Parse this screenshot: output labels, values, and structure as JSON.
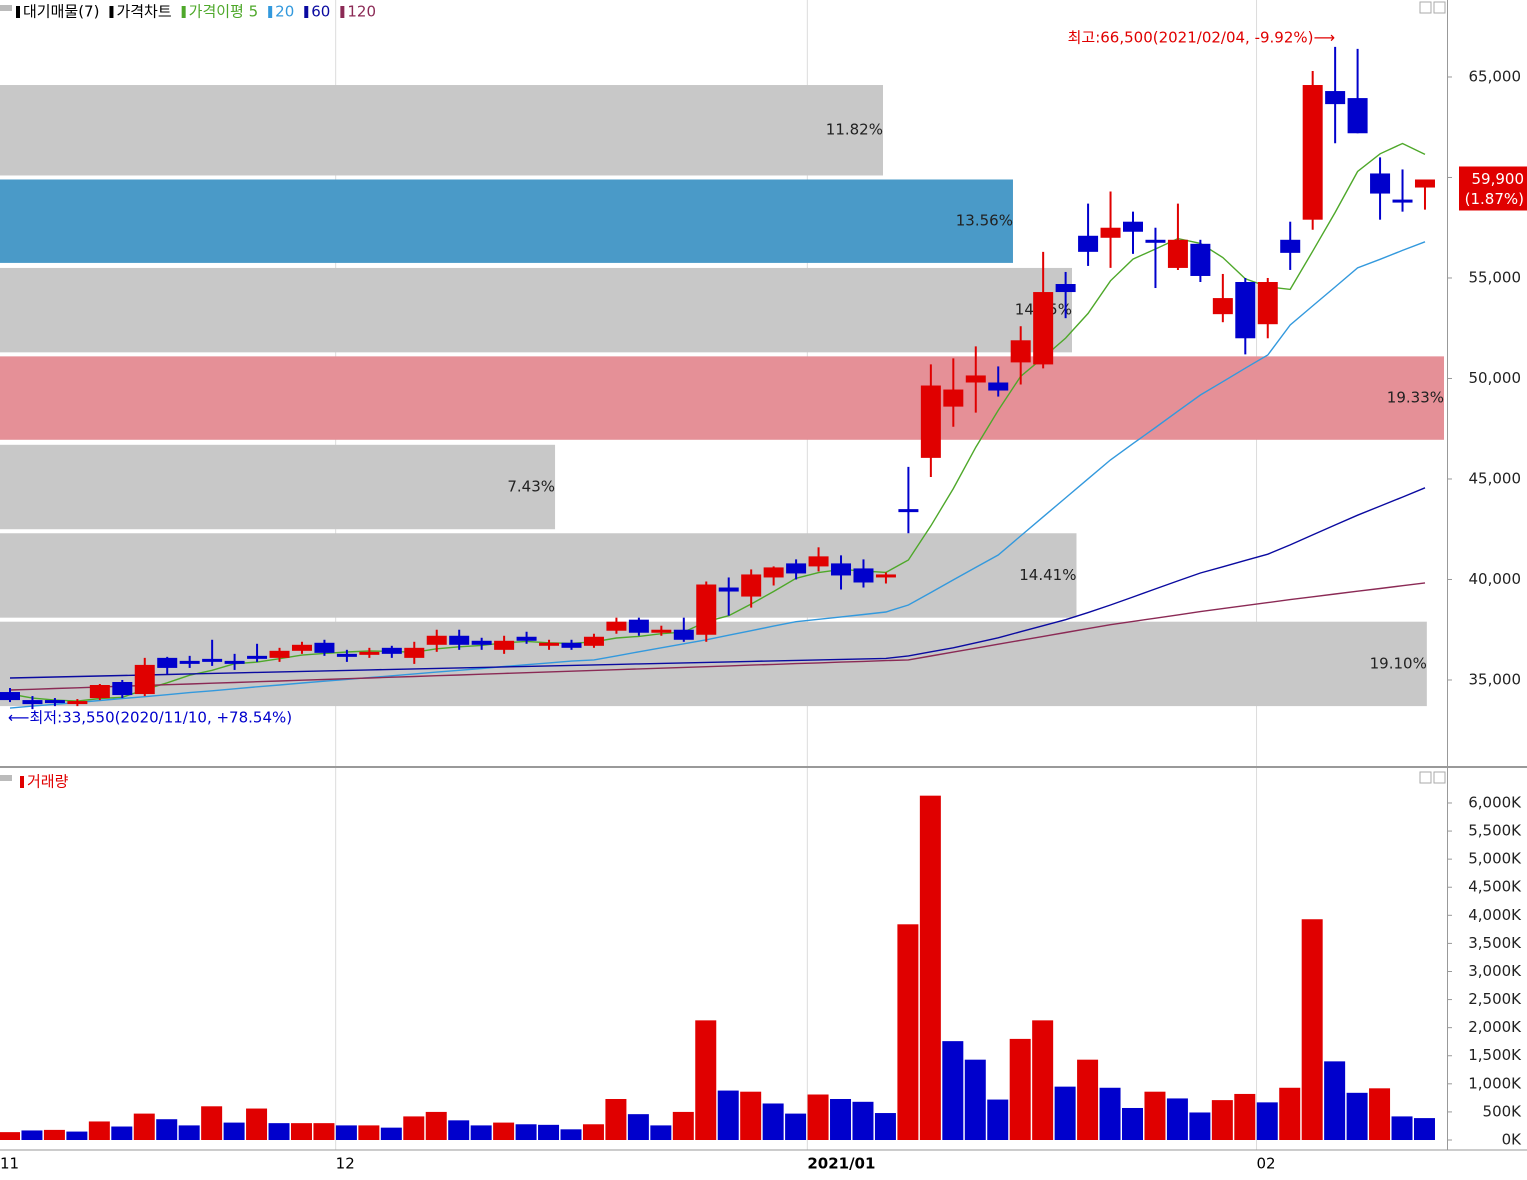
{
  "chart_data": [
    {
      "type": "candlestick",
      "candle_name": "가격차트",
      "up_color": "#e00000",
      "down_color": "#0000cc",
      "ylim": [
        30770,
        68830
      ],
      "yticks": [
        {
          "value": 35000,
          "label": "35,000"
        },
        {
          "value": 40000,
          "label": "40,000"
        },
        {
          "value": 45000,
          "label": "45,000"
        },
        {
          "value": 50000,
          "label": "50,000"
        },
        {
          "value": 55000,
          "label": "55,000"
        },
        {
          "value": 60000,
          "label": "60,000"
        },
        {
          "value": 65000,
          "label": "65,000"
        }
      ],
      "open": [
        34400,
        34000,
        34000,
        33850,
        34100,
        34900,
        34300,
        36100,
        35950,
        36050,
        35950,
        36200,
        36100,
        36450,
        36850,
        36300,
        36300,
        36600,
        36100,
        36750,
        37200,
        36950,
        36500,
        37150,
        36800,
        36850,
        36700,
        37450,
        38000,
        37400,
        37500,
        37250,
        39600,
        39150,
        40100,
        40800,
        40650,
        40800,
        40550,
        40150,
        43500,
        46050,
        48600,
        49800,
        49800,
        50800,
        50700,
        54700,
        57100,
        57000,
        57800,
        56900,
        55500,
        56700,
        53200,
        54800,
        52700,
        56900,
        57900,
        64300,
        63950,
        60200,
        58900,
        59500
      ],
      "high": [
        34600,
        34200,
        34100,
        34050,
        34800,
        35000,
        36100,
        36150,
        36200,
        37000,
        36300,
        36800,
        36600,
        36900,
        37000,
        36500,
        36600,
        36700,
        36900,
        37500,
        37500,
        37100,
        37200,
        37400,
        37000,
        37000,
        37300,
        38100,
        38100,
        37700,
        38100,
        39900,
        40100,
        40500,
        40650,
        41000,
        41600,
        41200,
        41000,
        40350,
        45600,
        50700,
        51000,
        51600,
        50600,
        52600,
        56300,
        55300,
        58700,
        59300,
        58300,
        57500,
        58700,
        56900,
        55200,
        55000,
        55000,
        57800,
        65300,
        66500,
        66400,
        61000,
        60400,
        59900
      ],
      "low": [
        33900,
        33550,
        33700,
        33700,
        34000,
        34100,
        34200,
        35300,
        35600,
        35700,
        35500,
        35900,
        35900,
        36300,
        36200,
        35900,
        36100,
        36100,
        35800,
        36400,
        36500,
        36500,
        36300,
        36800,
        36500,
        36500,
        36600,
        37300,
        37200,
        37200,
        36900,
        36900,
        38200,
        38600,
        39700,
        40000,
        40400,
        39500,
        39600,
        39800,
        42300,
        45100,
        47600,
        48300,
        49100,
        49700,
        50500,
        53000,
        55600,
        55500,
        56200,
        54500,
        55400,
        54800,
        52800,
        51200,
        52000,
        55400,
        57400,
        61700,
        62200,
        57900,
        58300,
        58400
      ],
      "close": [
        34000,
        33800,
        33900,
        33950,
        34750,
        34250,
        35750,
        35600,
        35850,
        35950,
        35900,
        36150,
        36450,
        36750,
        36350,
        36250,
        36400,
        36300,
        36600,
        37200,
        36750,
        36750,
        36950,
        36950,
        36850,
        36600,
        37150,
        37900,
        37350,
        37500,
        37000,
        39750,
        39400,
        40250,
        40600,
        40300,
        41150,
        40200,
        39850,
        40250,
        43400,
        49650,
        49450,
        50150,
        49400,
        51900,
        54300,
        54300,
        56300,
        57500,
        57300,
        56800,
        56900,
        55100,
        54000,
        52000,
        54800,
        56250,
        64600,
        63650,
        62200,
        59200,
        58800,
        59900
      ],
      "series": [
        {
          "name": "가격이평 5",
          "color": "#4ea82a",
          "values": [
            34300,
            34100,
            34000,
            33950,
            34080,
            34140,
            34520,
            34860,
            35240,
            35480,
            35810,
            35890,
            36060,
            36240,
            36320,
            36390,
            36440,
            36420,
            36380,
            36550,
            36650,
            36720,
            36850,
            36920,
            36850,
            36820,
            36900,
            37090,
            37170,
            37300,
            37380,
            37900,
            38200,
            38780,
            39400,
            40060,
            40340,
            40500,
            40420,
            40350,
            40970,
            42670,
            44520,
            46580,
            48410,
            50110,
            51040,
            52010,
            53240,
            54860,
            55940,
            56440,
            56960,
            56720,
            56020,
            54960,
            54560,
            54430,
            56330,
            58260,
            60300,
            61180,
            61690,
            61150
          ]
        },
        {
          "name": "20",
          "color": "#3399dd",
          "values": [
            33600,
            33700,
            33790,
            33880,
            33980,
            34080,
            34170,
            34270,
            34370,
            34460,
            34560,
            34660,
            34750,
            34850,
            34940,
            35030,
            35120,
            35210,
            35300,
            35390,
            35480,
            35570,
            35670,
            35760,
            35850,
            35940,
            36000,
            36200,
            36400,
            36600,
            36800,
            37000,
            37230,
            37450,
            37680,
            37900,
            38020,
            38140,
            38260,
            38380,
            38730,
            39350,
            39980,
            40600,
            41220,
            42170,
            43120,
            44060,
            45010,
            45950,
            46760,
            47560,
            48370,
            49180,
            49840,
            50510,
            51170,
            52660,
            53610,
            54550,
            55500,
            55930,
            56370,
            56800
          ]
        },
        {
          "name": "60",
          "color": "#0a0aa0",
          "values": [
            35100,
            35125,
            35150,
            35175,
            35200,
            35225,
            35250,
            35275,
            35300,
            35325,
            35350,
            35375,
            35400,
            35425,
            35450,
            35475,
            35500,
            35525,
            35550,
            35575,
            35600,
            35625,
            35650,
            35675,
            35700,
            35725,
            35750,
            35775,
            35800,
            35825,
            35850,
            35875,
            35900,
            35925,
            35950,
            35975,
            36000,
            36025,
            36050,
            36075,
            36200,
            36400,
            36600,
            36850,
            37100,
            37400,
            37700,
            38000,
            38350,
            38730,
            39130,
            39530,
            39930,
            40320,
            40630,
            40950,
            41260,
            41720,
            42220,
            42710,
            43200,
            43650,
            44100,
            44560
          ]
        },
        {
          "name": "120",
          "color": "#8b2a55",
          "values": [
            34500,
            34538,
            34575,
            34613,
            34650,
            34688,
            34725,
            34763,
            34800,
            34838,
            34875,
            34913,
            34950,
            34988,
            35025,
            35063,
            35100,
            35138,
            35175,
            35213,
            35250,
            35288,
            35325,
            35363,
            35400,
            35438,
            35475,
            35513,
            35550,
            35588,
            35625,
            35663,
            35700,
            35738,
            35775,
            35813,
            35850,
            35888,
            35925,
            35963,
            36000,
            36194,
            36389,
            36583,
            36778,
            36972,
            37167,
            37361,
            37556,
            37750,
            37913,
            38075,
            38238,
            38400,
            38550,
            38700,
            38850,
            39000,
            39138,
            39277,
            39415,
            39553,
            39692,
            39830
          ]
        }
      ],
      "volume_profile": {
        "name": "대기매물(7)",
        "xlim": [
          0,
          19.37
        ],
        "ranges": [
          [
            60100,
            64600
          ],
          [
            55750,
            59900
          ],
          [
            51300,
            55500
          ],
          [
            46950,
            51100
          ],
          [
            42500,
            46700
          ],
          [
            38100,
            42300
          ],
          [
            33700,
            37900
          ]
        ],
        "values": [
          11.82,
          13.56,
          14.35,
          19.33,
          7.43,
          14.41,
          19.1
        ],
        "value_labels": [
          "11.82%",
          "13.56%",
          "14.35%",
          "19.33%",
          "7.43%",
          "14.41%",
          "19.10%"
        ],
        "colors": [
          "#c8c8c8",
          "#4a9ac8",
          "#c8c8c8",
          "#e59097",
          "#c8c8c8",
          "#c8c8c8",
          "#c8c8c8"
        ]
      },
      "last_price": {
        "value": 59900,
        "label": "59,900"
      },
      "last_change": {
        "value": 1.87,
        "label": "(1.87%)"
      },
      "annotations": [
        {
          "text": "최고:66,500(2021/02/04, -9.92%)⟶",
          "color": "#e00000"
        },
        {
          "text": "⟵최저:33,550(2020/11/10, +78.54%)",
          "color": "#0000cc"
        }
      ]
    },
    {
      "type": "bar",
      "categories": [
        "11",
        null,
        null,
        null,
        null,
        null,
        null,
        null,
        null,
        null,
        null,
        null,
        null,
        null,
        null,
        "12",
        null,
        null,
        null,
        null,
        null,
        null,
        null,
        null,
        null,
        null,
        null,
        null,
        null,
        null,
        null,
        null,
        null,
        null,
        null,
        null,
        "2021/01",
        null,
        null,
        null,
        null,
        null,
        null,
        null,
        null,
        null,
        null,
        null,
        null,
        null,
        null,
        null,
        null,
        null,
        null,
        null,
        "02",
        null,
        null,
        null,
        null,
        null,
        null,
        null
      ],
      "ylim": [
        -178,
        6587
      ],
      "yticks": [
        {
          "value": 0,
          "label": "0K"
        },
        {
          "value": 500,
          "label": "500K"
        },
        {
          "value": 1000,
          "label": "1,000K"
        },
        {
          "value": 1500,
          "label": "1,500K"
        },
        {
          "value": 2000,
          "label": "2,000K"
        },
        {
          "value": 2500,
          "label": "2,500K"
        },
        {
          "value": 3000,
          "label": "3,000K"
        },
        {
          "value": 3500,
          "label": "3,500K"
        },
        {
          "value": 4000,
          "label": "4,000K"
        },
        {
          "value": 4500,
          "label": "4,500K"
        },
        {
          "value": 5000,
          "label": "5,000K"
        },
        {
          "value": 5500,
          "label": "5,500K"
        },
        {
          "value": 6000,
          "label": "6,000K"
        }
      ],
      "series": [
        {
          "name": "거래량",
          "color": "#e00000",
          "values": [
            140,
            170,
            180,
            150,
            330,
            240,
            470,
            370,
            260,
            600,
            310,
            560,
            300,
            300,
            300,
            260,
            260,
            220,
            420,
            500,
            350,
            260,
            310,
            280,
            270,
            190,
            280,
            730,
            460,
            260,
            500,
            2130,
            880,
            860,
            650,
            470,
            810,
            730,
            680,
            480,
            3840,
            6130,
            1760,
            1430,
            720,
            1800,
            2130,
            950,
            1430,
            930,
            570,
            860,
            740,
            490,
            710,
            820,
            670,
            930,
            3930,
            1400,
            840,
            920,
            420,
            390
          ],
          "colors": [
            "#e00000",
            "#0000cc",
            "#e00000",
            "#0000cc",
            "#e00000",
            "#0000cc",
            "#e00000",
            "#0000cc",
            "#0000cc",
            "#e00000",
            "#0000cc",
            "#e00000",
            "#0000cc",
            "#e00000",
            "#e00000",
            "#0000cc",
            "#e00000",
            "#0000cc",
            "#e00000",
            "#e00000",
            "#0000cc",
            "#0000cc",
            "#e00000",
            "#0000cc",
            "#0000cc",
            "#0000cc",
            "#e00000",
            "#e00000",
            "#0000cc",
            "#0000cc",
            "#e00000",
            "#e00000",
            "#0000cc",
            "#e00000",
            "#0000cc",
            "#0000cc",
            "#e00000",
            "#0000cc",
            "#0000cc",
            "#0000cc",
            "#e00000",
            "#e00000",
            "#0000cc",
            "#0000cc",
            "#0000cc",
            "#e00000",
            "#e00000",
            "#0000cc",
            "#e00000",
            "#0000cc",
            "#0000cc",
            "#e00000",
            "#0000cc",
            "#0000cc",
            "#e00000",
            "#e00000",
            "#0000cc",
            "#e00000",
            "#e00000",
            "#0000cc",
            "#0000cc",
            "#e00000",
            "#0000cc",
            "#0000cc"
          ]
        }
      ]
    }
  ]
}
